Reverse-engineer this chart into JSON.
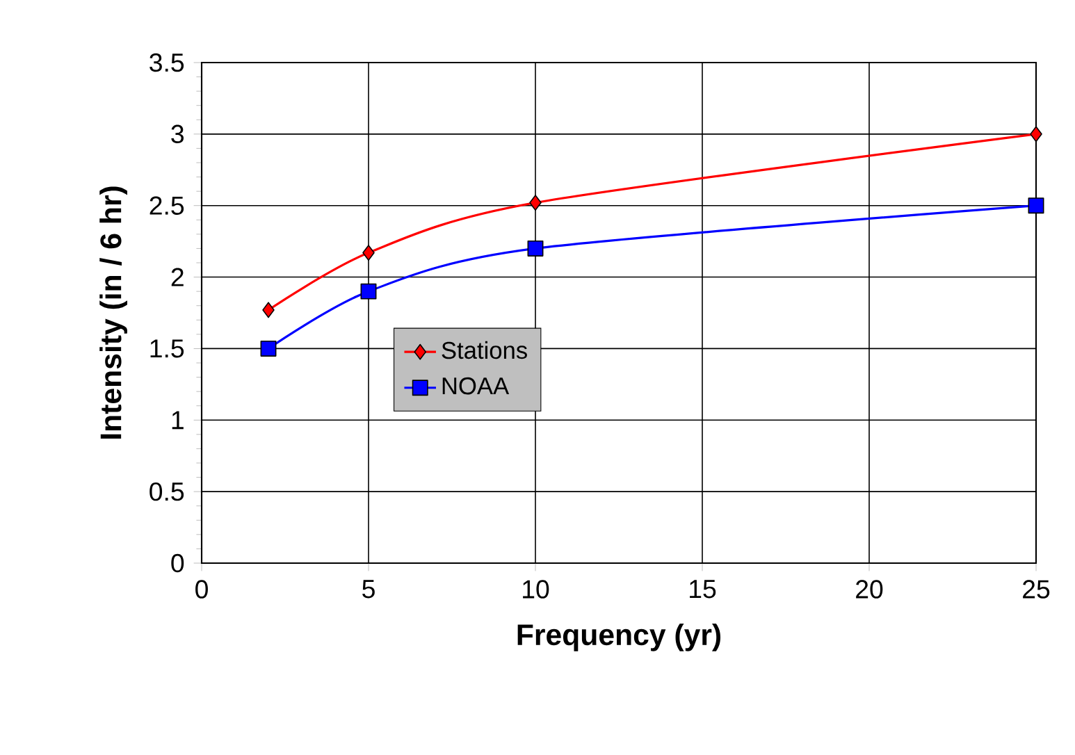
{
  "chart_data": {
    "type": "line",
    "xlabel": "Frequency (yr)",
    "ylabel": "Intensity (in / 6 hr)",
    "x": [
      2,
      5,
      10,
      25
    ],
    "series": [
      {
        "name": "Stations",
        "color": "#ff0000",
        "marker": "diamond",
        "values": [
          1.77,
          2.17,
          2.52,
          3.0
        ]
      },
      {
        "name": "NOAA",
        "color": "#0000ff",
        "marker": "square",
        "values": [
          1.5,
          1.9,
          2.2,
          2.5
        ]
      }
    ],
    "xlim": [
      0,
      25
    ],
    "xticks": [
      0,
      5,
      10,
      15,
      20,
      25
    ],
    "ylim": [
      0,
      3.5
    ],
    "yticks": [
      0,
      0.5,
      1,
      1.5,
      2,
      2.5,
      3,
      3.5
    ],
    "grid": true,
    "legend": "center left"
  }
}
